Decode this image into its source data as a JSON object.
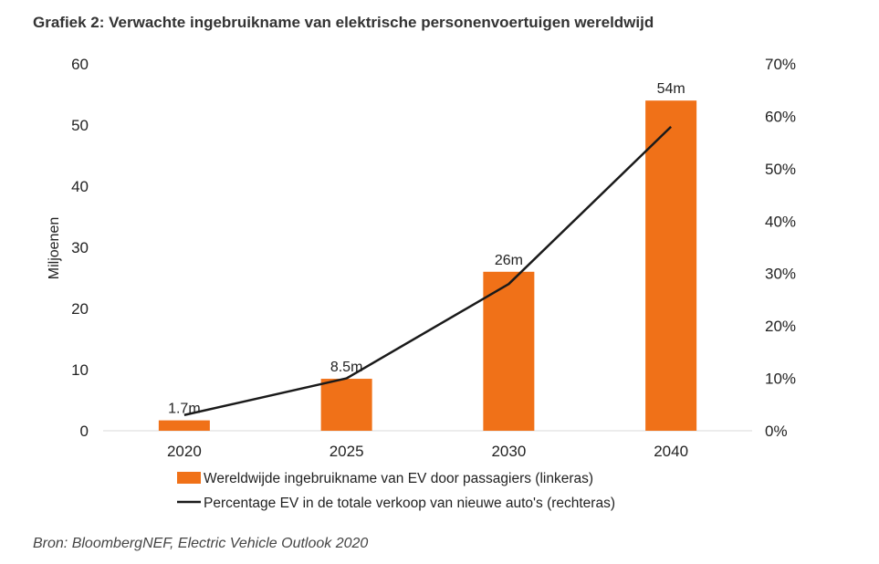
{
  "chart_data": {
    "type": "bar",
    "title": "Grafiek 2: Verwachte ingebruikname van elektrische personenvoertuigen wereldwijd",
    "source": "Bron: BloombergNEF, Electric Vehicle Outlook 2020",
    "categories": [
      "2020",
      "2025",
      "2030",
      "2040"
    ],
    "ylabel": "Miljoenen",
    "ylim": [
      0,
      60
    ],
    "y_ticks": [
      "0",
      "10",
      "20",
      "30",
      "40",
      "50",
      "60"
    ],
    "y2lim": [
      0,
      70
    ],
    "y2_ticks": [
      "0%",
      "10%",
      "20%",
      "30%",
      "40%",
      "50%",
      "60%",
      "70%"
    ],
    "grid": false,
    "legend_position": "bottom",
    "series": [
      {
        "name": "Wereldwijde ingebruikname van EV door passagiers (linkeras)",
        "type": "bar",
        "axis": "left",
        "color": "#f07118",
        "values": [
          1.7,
          8.5,
          26,
          54
        ],
        "labels": [
          "1.7m",
          "8.5m",
          "26m",
          "54m"
        ]
      },
      {
        "name": "Percentage EV in de totale verkoop van nieuwe auto's (rechteras)",
        "type": "line",
        "axis": "right",
        "color": "#1a1a1a",
        "values": [
          3,
          10,
          28,
          58
        ]
      }
    ]
  }
}
